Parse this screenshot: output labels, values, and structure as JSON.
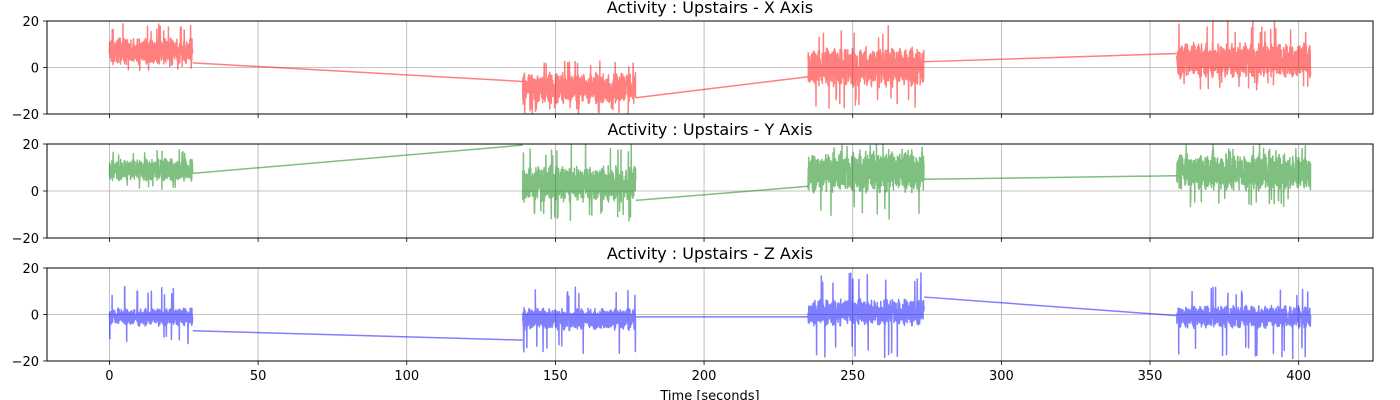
{
  "chart_data": [
    {
      "type": "line",
      "title": "Activity : Upstairs - X Axis",
      "xlim": [
        -21,
        425
      ],
      "ylim": [
        -20,
        20
      ],
      "xticks": [
        0,
        50,
        100,
        150,
        200,
        250,
        300,
        350,
        400
      ],
      "yticks": [
        -20,
        0,
        20
      ],
      "show_xtick_labels": false,
      "grid": true,
      "color": "#ff0000",
      "alpha": 0.5,
      "segments": [
        {
          "x_start": 0,
          "x_end": 28,
          "mean": 7,
          "amp": 6,
          "spike_max": 19,
          "spike_min": -2
        },
        {
          "x_start": 139,
          "x_end": 177,
          "mean": -9,
          "amp": 7,
          "spike_max": 3,
          "spike_min": -20
        },
        {
          "x_start": 235,
          "x_end": 274,
          "mean": 0,
          "amp": 9,
          "spike_max": 18,
          "spike_min": -18
        },
        {
          "x_start": 359,
          "x_end": 404,
          "mean": 3,
          "amp": 8,
          "spike_max": 20,
          "spike_min": -10
        }
      ],
      "connectors": [
        {
          "x": [
            28,
            139
          ],
          "y": [
            2,
            -6
          ]
        },
        {
          "x": [
            177,
            235
          ],
          "y": [
            -13,
            -4
          ]
        },
        {
          "x": [
            274,
            359
          ],
          "y": [
            2.5,
            6
          ]
        }
      ]
    },
    {
      "type": "line",
      "title": "Activity : Upstairs - Y Axis",
      "xlim": [
        -21,
        425
      ],
      "ylim": [
        -20,
        20
      ],
      "xticks": [
        0,
        50,
        100,
        150,
        200,
        250,
        300,
        350,
        400
      ],
      "yticks": [
        -20,
        0,
        20
      ],
      "show_xtick_labels": false,
      "grid": true,
      "color": "#008000",
      "alpha": 0.5,
      "segments": [
        {
          "x_start": 0,
          "x_end": 28,
          "mean": 9,
          "amp": 5,
          "spike_max": 18,
          "spike_min": 0
        },
        {
          "x_start": 139,
          "x_end": 177,
          "mean": 3,
          "amp": 8,
          "spike_max": 20,
          "spike_min": -13
        },
        {
          "x_start": 235,
          "x_end": 274,
          "mean": 8,
          "amp": 9,
          "spike_max": 20,
          "spike_min": -13
        },
        {
          "x_start": 359,
          "x_end": 404,
          "mean": 8,
          "amp": 8,
          "spike_max": 20,
          "spike_min": -7
        }
      ],
      "connectors": [
        {
          "x": [
            28,
            139
          ],
          "y": [
            7.5,
            19.5
          ]
        },
        {
          "x": [
            177,
            235
          ],
          "y": [
            -4,
            2
          ]
        },
        {
          "x": [
            274,
            359
          ],
          "y": [
            5,
            6.5
          ]
        }
      ]
    },
    {
      "type": "line",
      "title": "Activity : Upstairs - Z Axis",
      "xlim": [
        -21,
        425
      ],
      "ylim": [
        -20,
        20
      ],
      "xticks": [
        0,
        50,
        100,
        150,
        200,
        250,
        300,
        350,
        400
      ],
      "yticks": [
        -20,
        0,
        20
      ],
      "xtick_labels": [
        "0",
        "50",
        "100",
        "150",
        "200",
        "250",
        "300",
        "350",
        "400"
      ],
      "show_xtick_labels": true,
      "xlabel": "Time [seconds]",
      "grid": true,
      "color": "#0000ff",
      "alpha": 0.5,
      "segments": [
        {
          "x_start": 0,
          "x_end": 28,
          "mean": -1,
          "amp": 4,
          "spike_max": 12,
          "spike_min": -13
        },
        {
          "x_start": 139,
          "x_end": 177,
          "mean": -2,
          "amp": 5,
          "spike_max": 12,
          "spike_min": -17
        },
        {
          "x_start": 235,
          "x_end": 274,
          "mean": 1,
          "amp": 6,
          "spike_max": 18,
          "spike_min": -19
        },
        {
          "x_start": 359,
          "x_end": 404,
          "mean": -1,
          "amp": 5,
          "spike_max": 12,
          "spike_min": -19
        }
      ],
      "connectors": [
        {
          "x": [
            28,
            139
          ],
          "y": [
            -7,
            -11
          ]
        },
        {
          "x": [
            177,
            235
          ],
          "y": [
            -1,
            -1
          ]
        },
        {
          "x": [
            274,
            359
          ],
          "y": [
            7.5,
            -0.5
          ]
        }
      ]
    }
  ]
}
